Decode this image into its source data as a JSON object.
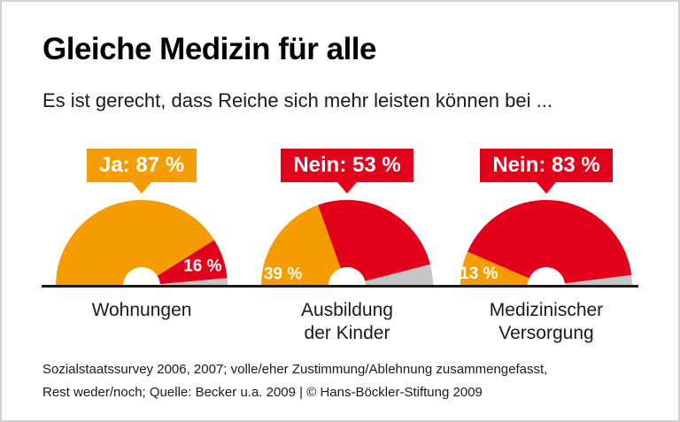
{
  "title": "Gleiche Medizin für alle",
  "subtitle": "Es ist gerecht, dass Reiche sich mehr leisten können bei ...",
  "footer": {
    "line1": "Sozialstaatssurvey 2006, 2007; volle/eher Zustimmung/Ablehnung zusammengefasst,",
    "line2": "Rest weder/noch; Quelle: Becker u.a. 2009 | © Hans-Böckler-Stiftung 2009"
  },
  "colors": {
    "orange": "#F59C00",
    "red": "#E2001A",
    "gray": "#C6C6C6",
    "text": "#1A1A1A"
  },
  "chart_data": [
    {
      "type": "pie",
      "variant": "half-donut",
      "category": "Wohnungen",
      "label_lines": [
        "Wohnungen"
      ],
      "badge": {
        "label": "Ja: 87 %",
        "color": "orange"
      },
      "slices": [
        {
          "name": "ja",
          "value": 87,
          "color": "orange"
        },
        {
          "name": "nein",
          "value": 16,
          "color": "red",
          "label": "16 %",
          "label_r": 0.75
        },
        {
          "name": "rest",
          "value": 3,
          "color": "gray"
        }
      ]
    },
    {
      "type": "pie",
      "variant": "half-donut",
      "category": "Ausbildung der Kinder",
      "label_lines": [
        "Ausbildung",
        "der Kinder"
      ],
      "badge": {
        "label": "Nein: 53 %",
        "color": "red"
      },
      "slices": [
        {
          "name": "ja",
          "value": 39,
          "color": "orange",
          "label": "39 %",
          "label_angle": 169,
          "label_r": 0.76
        },
        {
          "name": "nein",
          "value": 53,
          "color": "red"
        },
        {
          "name": "rest",
          "value": 8,
          "color": "gray"
        }
      ]
    },
    {
      "type": "pie",
      "variant": "half-donut",
      "category": "Medizinischer Versorgung",
      "label_lines": [
        "Medizinischer",
        "Versorgung"
      ],
      "badge": {
        "label": "Nein: 83 %",
        "color": "red"
      },
      "slices": [
        {
          "name": "ja",
          "value": 13,
          "color": "orange",
          "label": "13 %",
          "label_angle": 169,
          "label_r": 0.8
        },
        {
          "name": "nein",
          "value": 83,
          "color": "red"
        },
        {
          "name": "rest",
          "value": 4,
          "color": "gray"
        }
      ]
    }
  ]
}
